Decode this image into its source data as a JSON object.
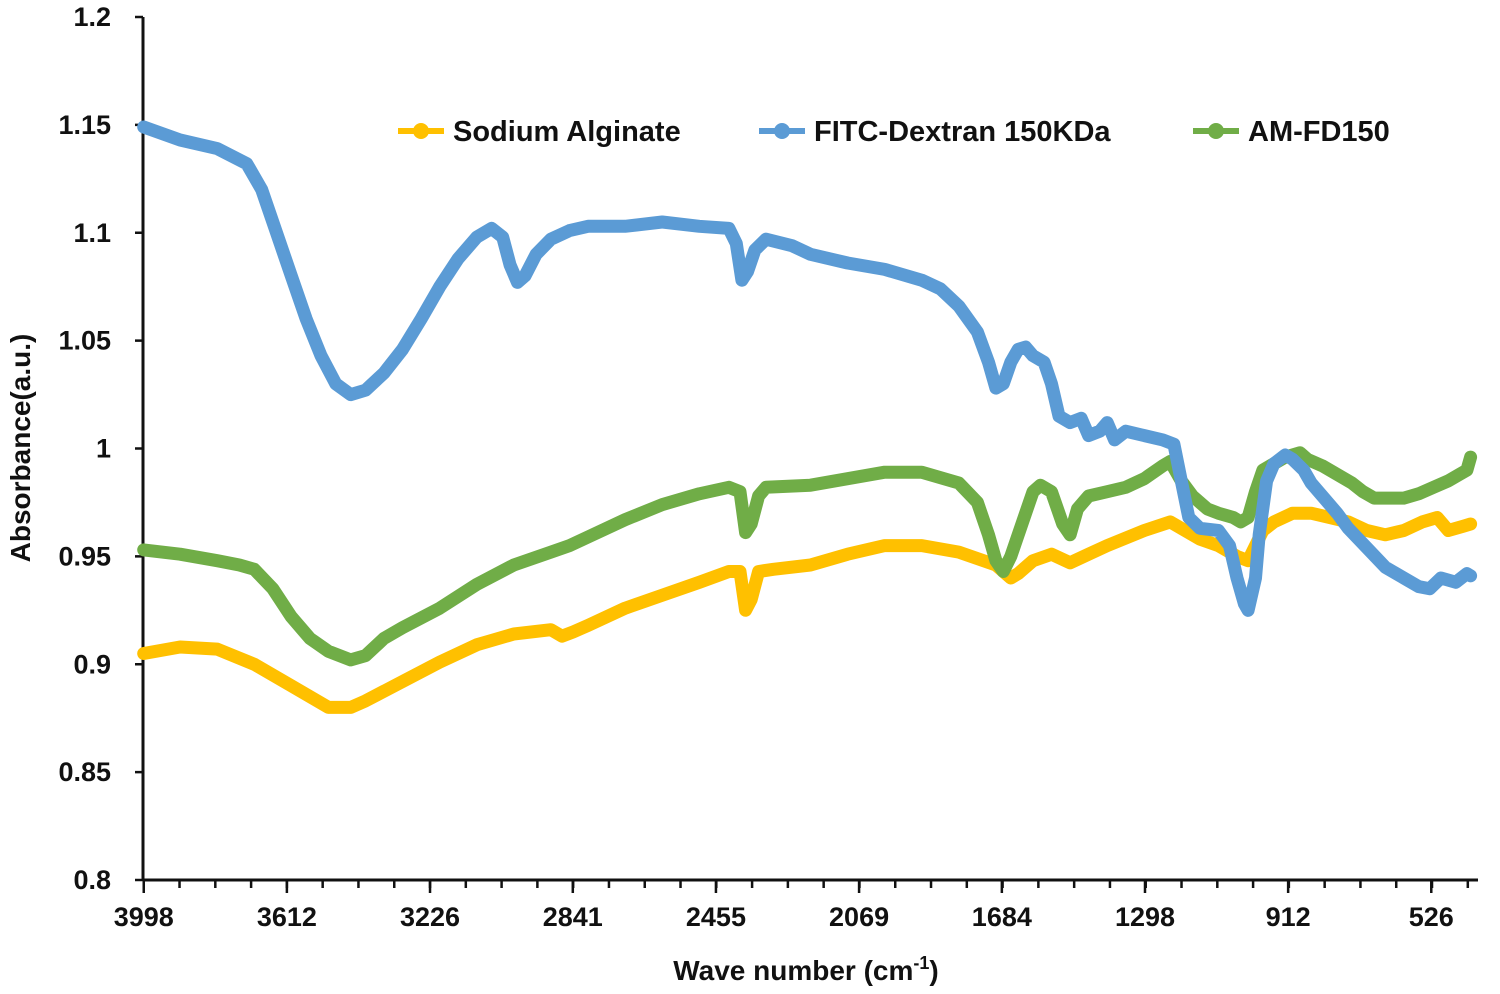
{
  "chart_data": {
    "type": "line",
    "title": "",
    "xlabel": "Wave number (cm",
    "xlabel_sup": "-1",
    "xlabel_end": ")",
    "ylabel": "Absorbance(a.u.)",
    "xlim": [
      4000,
      400
    ],
    "ylim": [
      0.8,
      1.2
    ],
    "x_ticks": [
      3998,
      3612,
      3226,
      2841,
      2455,
      2069,
      1684,
      1298,
      912,
      526
    ],
    "x_tick_labels": [
      "3998",
      "3612",
      "3226",
      "2841",
      "2455",
      "2069",
      "1684",
      "1298",
      "912",
      "526"
    ],
    "y_ticks": [
      0.8,
      0.85,
      0.9,
      0.95,
      1,
      1.05,
      1.1,
      1.15,
      1.2
    ],
    "y_tick_labels": [
      "0.8",
      "0.85",
      "0.9",
      "0.95",
      "1",
      "1.05",
      "1.1",
      "1.15",
      "1.2"
    ],
    "legend_position": "top",
    "series": [
      {
        "name": "Sodium Alginate",
        "color": "#FFC000",
        "points": [
          [
            3998,
            0.905
          ],
          [
            3900,
            0.908
          ],
          [
            3800,
            0.907
          ],
          [
            3700,
            0.9
          ],
          [
            3600,
            0.89
          ],
          [
            3500,
            0.88
          ],
          [
            3440,
            0.88
          ],
          [
            3400,
            0.883
          ],
          [
            3300,
            0.892
          ],
          [
            3200,
            0.901
          ],
          [
            3100,
            0.909
          ],
          [
            3000,
            0.914
          ],
          [
            2900,
            0.916
          ],
          [
            2870,
            0.913
          ],
          [
            2840,
            0.915
          ],
          [
            2800,
            0.918
          ],
          [
            2700,
            0.926
          ],
          [
            2600,
            0.932
          ],
          [
            2500,
            0.938
          ],
          [
            2420,
            0.943
          ],
          [
            2390,
            0.943
          ],
          [
            2375,
            0.925
          ],
          [
            2360,
            0.93
          ],
          [
            2340,
            0.943
          ],
          [
            2300,
            0.944
          ],
          [
            2200,
            0.946
          ],
          [
            2100,
            0.951
          ],
          [
            2000,
            0.955
          ],
          [
            1900,
            0.955
          ],
          [
            1800,
            0.952
          ],
          [
            1700,
            0.946
          ],
          [
            1660,
            0.94
          ],
          [
            1640,
            0.942
          ],
          [
            1600,
            0.948
          ],
          [
            1550,
            0.951
          ],
          [
            1500,
            0.947
          ],
          [
            1450,
            0.951
          ],
          [
            1400,
            0.955
          ],
          [
            1300,
            0.962
          ],
          [
            1230,
            0.966
          ],
          [
            1150,
            0.958
          ],
          [
            1100,
            0.955
          ],
          [
            1050,
            0.95
          ],
          [
            1020,
            0.948
          ],
          [
            980,
            0.962
          ],
          [
            950,
            0.966
          ],
          [
            900,
            0.97
          ],
          [
            850,
            0.97
          ],
          [
            800,
            0.968
          ],
          [
            750,
            0.966
          ],
          [
            700,
            0.962
          ],
          [
            650,
            0.96
          ],
          [
            600,
            0.962
          ],
          [
            550,
            0.966
          ],
          [
            510,
            0.968
          ],
          [
            480,
            0.962
          ],
          [
            440,
            0.964
          ],
          [
            420,
            0.965
          ]
        ]
      },
      {
        "name": "FITC-Dextran 150KDa",
        "color": "#5B9BD5",
        "points": [
          [
            3998,
            1.149
          ],
          [
            3900,
            1.143
          ],
          [
            3800,
            1.139
          ],
          [
            3720,
            1.132
          ],
          [
            3680,
            1.12
          ],
          [
            3640,
            1.1
          ],
          [
            3600,
            1.08
          ],
          [
            3560,
            1.06
          ],
          [
            3520,
            1.043
          ],
          [
            3480,
            1.03
          ],
          [
            3440,
            1.025
          ],
          [
            3400,
            1.027
          ],
          [
            3350,
            1.035
          ],
          [
            3300,
            1.046
          ],
          [
            3250,
            1.06
          ],
          [
            3200,
            1.075
          ],
          [
            3150,
            1.088
          ],
          [
            3100,
            1.098
          ],
          [
            3060,
            1.102
          ],
          [
            3030,
            1.098
          ],
          [
            3010,
            1.085
          ],
          [
            2990,
            1.077
          ],
          [
            2970,
            1.08
          ],
          [
            2940,
            1.09
          ],
          [
            2900,
            1.097
          ],
          [
            2850,
            1.101
          ],
          [
            2800,
            1.103
          ],
          [
            2700,
            1.103
          ],
          [
            2600,
            1.105
          ],
          [
            2500,
            1.103
          ],
          [
            2420,
            1.102
          ],
          [
            2400,
            1.095
          ],
          [
            2385,
            1.078
          ],
          [
            2370,
            1.082
          ],
          [
            2350,
            1.092
          ],
          [
            2320,
            1.097
          ],
          [
            2250,
            1.094
          ],
          [
            2200,
            1.09
          ],
          [
            2100,
            1.086
          ],
          [
            2000,
            1.083
          ],
          [
            1900,
            1.078
          ],
          [
            1850,
            1.074
          ],
          [
            1800,
            1.066
          ],
          [
            1750,
            1.054
          ],
          [
            1720,
            1.04
          ],
          [
            1700,
            1.028
          ],
          [
            1680,
            1.03
          ],
          [
            1660,
            1.04
          ],
          [
            1640,
            1.046
          ],
          [
            1620,
            1.047
          ],
          [
            1600,
            1.043
          ],
          [
            1570,
            1.04
          ],
          [
            1550,
            1.03
          ],
          [
            1530,
            1.015
          ],
          [
            1500,
            1.012
          ],
          [
            1470,
            1.014
          ],
          [
            1450,
            1.006
          ],
          [
            1420,
            1.008
          ],
          [
            1400,
            1.012
          ],
          [
            1380,
            1.004
          ],
          [
            1350,
            1.008
          ],
          [
            1300,
            1.006
          ],
          [
            1250,
            1.004
          ],
          [
            1220,
            1.002
          ],
          [
            1200,
            0.985
          ],
          [
            1180,
            0.968
          ],
          [
            1150,
            0.963
          ],
          [
            1100,
            0.962
          ],
          [
            1070,
            0.955
          ],
          [
            1050,
            0.94
          ],
          [
            1030,
            0.928
          ],
          [
            1020,
            0.925
          ],
          [
            1000,
            0.94
          ],
          [
            990,
            0.96
          ],
          [
            970,
            0.985
          ],
          [
            950,
            0.993
          ],
          [
            920,
            0.997
          ],
          [
            900,
            0.995
          ],
          [
            870,
            0.99
          ],
          [
            850,
            0.984
          ],
          [
            820,
            0.978
          ],
          [
            780,
            0.97
          ],
          [
            750,
            0.963
          ],
          [
            700,
            0.954
          ],
          [
            650,
            0.945
          ],
          [
            600,
            0.94
          ],
          [
            560,
            0.936
          ],
          [
            530,
            0.935
          ],
          [
            500,
            0.94
          ],
          [
            460,
            0.938
          ],
          [
            430,
            0.942
          ],
          [
            420,
            0.941
          ]
        ]
      },
      {
        "name": "AM-FD150",
        "color": "#70AD47",
        "points": [
          [
            3998,
            0.953
          ],
          [
            3900,
            0.951
          ],
          [
            3800,
            0.948
          ],
          [
            3740,
            0.946
          ],
          [
            3700,
            0.944
          ],
          [
            3650,
            0.935
          ],
          [
            3600,
            0.922
          ],
          [
            3550,
            0.912
          ],
          [
            3500,
            0.906
          ],
          [
            3440,
            0.902
          ],
          [
            3400,
            0.904
          ],
          [
            3350,
            0.912
          ],
          [
            3300,
            0.917
          ],
          [
            3200,
            0.926
          ],
          [
            3100,
            0.937
          ],
          [
            3000,
            0.946
          ],
          [
            2900,
            0.952
          ],
          [
            2850,
            0.955
          ],
          [
            2800,
            0.959
          ],
          [
            2700,
            0.967
          ],
          [
            2600,
            0.974
          ],
          [
            2500,
            0.979
          ],
          [
            2420,
            0.982
          ],
          [
            2390,
            0.98
          ],
          [
            2375,
            0.961
          ],
          [
            2360,
            0.965
          ],
          [
            2340,
            0.978
          ],
          [
            2320,
            0.982
          ],
          [
            2200,
            0.983
          ],
          [
            2100,
            0.986
          ],
          [
            2000,
            0.989
          ],
          [
            1900,
            0.989
          ],
          [
            1800,
            0.984
          ],
          [
            1750,
            0.975
          ],
          [
            1720,
            0.96
          ],
          [
            1700,
            0.948
          ],
          [
            1680,
            0.943
          ],
          [
            1660,
            0.95
          ],
          [
            1630,
            0.965
          ],
          [
            1600,
            0.98
          ],
          [
            1580,
            0.983
          ],
          [
            1550,
            0.98
          ],
          [
            1520,
            0.965
          ],
          [
            1500,
            0.96
          ],
          [
            1480,
            0.972
          ],
          [
            1450,
            0.978
          ],
          [
            1400,
            0.98
          ],
          [
            1350,
            0.982
          ],
          [
            1300,
            0.986
          ],
          [
            1250,
            0.992
          ],
          [
            1230,
            0.994
          ],
          [
            1200,
            0.985
          ],
          [
            1170,
            0.978
          ],
          [
            1130,
            0.972
          ],
          [
            1100,
            0.97
          ],
          [
            1060,
            0.968
          ],
          [
            1040,
            0.966
          ],
          [
            1020,
            0.968
          ],
          [
            1000,
            0.98
          ],
          [
            980,
            0.99
          ],
          [
            950,
            0.993
          ],
          [
            920,
            0.996
          ],
          [
            880,
            0.998
          ],
          [
            860,
            0.995
          ],
          [
            820,
            0.992
          ],
          [
            780,
            0.988
          ],
          [
            740,
            0.984
          ],
          [
            710,
            0.98
          ],
          [
            680,
            0.977
          ],
          [
            640,
            0.977
          ],
          [
            600,
            0.977
          ],
          [
            560,
            0.979
          ],
          [
            520,
            0.982
          ],
          [
            480,
            0.985
          ],
          [
            450,
            0.988
          ],
          [
            430,
            0.99
          ],
          [
            420,
            0.996
          ]
        ]
      }
    ]
  }
}
